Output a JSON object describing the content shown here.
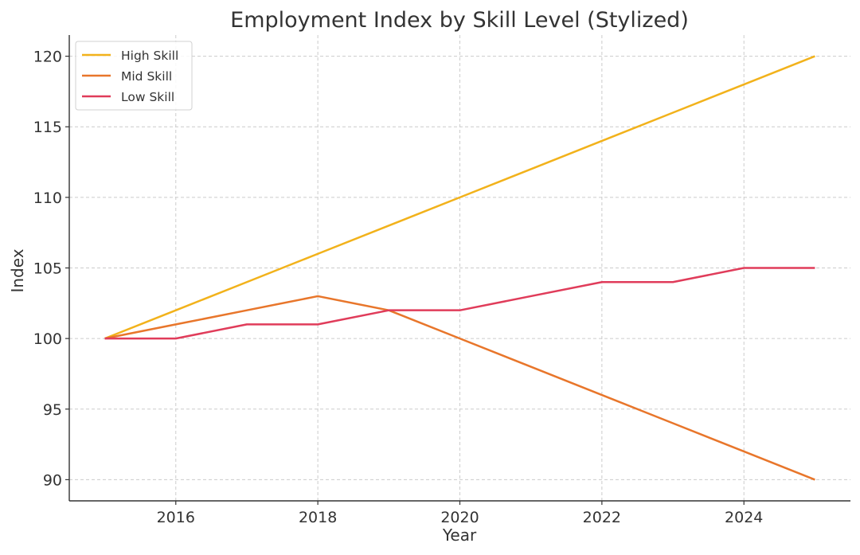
{
  "chart_data": {
    "type": "line",
    "title": "Employment Index by Skill Level (Stylized)",
    "xlabel": "Year",
    "ylabel": "Index",
    "x": [
      2015,
      2016,
      2017,
      2018,
      2019,
      2020,
      2021,
      2022,
      2023,
      2024,
      2025
    ],
    "xlim": [
      2014.5,
      2025.5
    ],
    "ylim": [
      88.5,
      121.5
    ],
    "xticks": [
      2016,
      2018,
      2020,
      2022,
      2024
    ],
    "yticks": [
      90,
      95,
      100,
      105,
      110,
      115,
      120
    ],
    "grid": true,
    "legend_position": "top-left",
    "series": [
      {
        "name": "High Skill",
        "color": "#f2b21b",
        "values": [
          100,
          102,
          104,
          106,
          108,
          110,
          112,
          114,
          116,
          118,
          120
        ]
      },
      {
        "name": "Mid Skill",
        "color": "#e8762b",
        "values": [
          100,
          101,
          102,
          103,
          102,
          100,
          98,
          96,
          94,
          92,
          90
        ]
      },
      {
        "name": "Low Skill",
        "color": "#e03c5a",
        "values": [
          100,
          100,
          101,
          101,
          102,
          102,
          103,
          104,
          104,
          105,
          105
        ]
      }
    ]
  }
}
